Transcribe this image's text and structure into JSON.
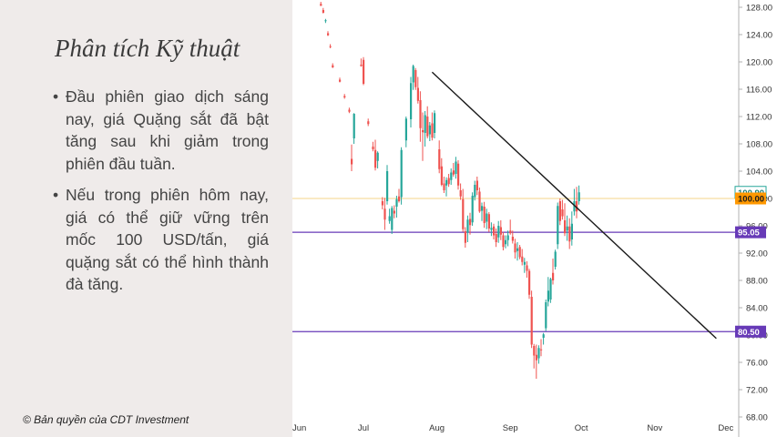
{
  "title": "Phân tích Kỹ thuật",
  "bullets": [
    "Đầu phiên giao dịch sáng nay, giá Quặng sắt đã bật tăng sau khi giảm trong phiên đầu tuần.",
    "Nếu trong phiên hôm nay, giá có thể giữ vững trên mốc 100 USD/tấn, giá quặng sắt có thể hình thành đà tăng."
  ],
  "copyright": "© Bản quyền của CDT Investment",
  "colors": {
    "up": "#26a69a",
    "down": "#ef5350",
    "resistance": "#f5d58a",
    "support": "#673ab7",
    "trendline": "#1a1a1a",
    "price_tag": "#ff9800",
    "last_tag_border": "#26a69a"
  },
  "chart_data": {
    "type": "candlestick",
    "ylim": [
      68,
      129
    ],
    "yticks": [
      "128.00",
      "124.00",
      "120.00",
      "116.00",
      "112.00",
      "108.00",
      "104.00",
      "100.00",
      "96.00",
      "92.00",
      "88.00",
      "84.00",
      "80.00",
      "76.00",
      "72.00",
      "68.00"
    ],
    "xticks": [
      {
        "label": "Jun",
        "day": 0
      },
      {
        "label": "Jul",
        "day": 30
      },
      {
        "label": "Aug",
        "day": 61
      },
      {
        "label": "Sep",
        "day": 92
      },
      {
        "label": "Oct",
        "day": 122
      },
      {
        "label": "Nov",
        "day": 153
      },
      {
        "label": "Dec",
        "day": 183
      }
    ],
    "horizontal_lines": [
      {
        "value": 100.9,
        "label": "100.90",
        "style": "last"
      },
      {
        "value": 100.0,
        "label": "100.00",
        "style": "resistance"
      },
      {
        "value": 95.05,
        "label": "95.05",
        "style": "support"
      },
      {
        "value": 80.5,
        "label": "80.50",
        "style": "support"
      }
    ],
    "trendline": {
      "from": {
        "day": 59,
        "price": 118.5
      },
      "to": {
        "day": 179,
        "price": 79.5
      }
    },
    "candles": [
      [
        12,
        128.5,
        128.8,
        128.2,
        128.2
      ],
      [
        13,
        127.6,
        127.9,
        127.1,
        127.2
      ],
      [
        14,
        126.0,
        126.3,
        125.7,
        126.1
      ],
      [
        15,
        124.2,
        124.5,
        123.8,
        123.9
      ],
      [
        16,
        122.3,
        122.6,
        122.0,
        122.2
      ],
      [
        17,
        119.5,
        119.8,
        119.1,
        119.2
      ],
      [
        20,
        117.4,
        117.7,
        117.0,
        117.1
      ],
      [
        22,
        115.0,
        115.3,
        114.6,
        114.8
      ],
      [
        24,
        113.0,
        113.3,
        112.5,
        112.7
      ],
      [
        25,
        105.8,
        107.9,
        104.0,
        105.0
      ],
      [
        26,
        108.8,
        112.5,
        108.0,
        112.4
      ],
      [
        29,
        119.6,
        120.5,
        119.3,
        119.4
      ],
      [
        30,
        120.3,
        120.7,
        116.6,
        116.8
      ],
      [
        32,
        111.3,
        111.7,
        110.6,
        110.9
      ],
      [
        34,
        107.6,
        108.3,
        106.9,
        107.2
      ],
      [
        35,
        107.1,
        108.6,
        104.1,
        104.5
      ],
      [
        36,
        105.5,
        106.9,
        104.4,
        106.7
      ],
      [
        38,
        99.6,
        100.2,
        98.4,
        99.0
      ],
      [
        39,
        98.5,
        100.1,
        95.4,
        96.9
      ],
      [
        40,
        99.6,
        104.9,
        99.1,
        104.0
      ],
      [
        41,
        96.7,
        98.5,
        96.3,
        97.4
      ],
      [
        42,
        95.4,
        98.9,
        94.8,
        98.6
      ],
      [
        43,
        98.2,
        99.0,
        97.1,
        97.8
      ],
      [
        44,
        98.8,
        100.4,
        97.2,
        99.9
      ],
      [
        45,
        100.3,
        101.4,
        99.4,
        99.6
      ],
      [
        46,
        100.2,
        107.5,
        99.1,
        107.1
      ],
      [
        48,
        108.5,
        112.0,
        107.5,
        111.7
      ],
      [
        50,
        111.6,
        117.8,
        110.4,
        116.9
      ],
      [
        51,
        117.0,
        119.6,
        115.9,
        119.4
      ],
      [
        52,
        118.8,
        119.1,
        115.9,
        116.3
      ],
      [
        53,
        116.2,
        117.8,
        113.9,
        114.3
      ],
      [
        54,
        114.4,
        115.7,
        108.3,
        110.3
      ],
      [
        55,
        110.0,
        112.6,
        105.5,
        109.7
      ],
      [
        56,
        109.6,
        112.8,
        107.6,
        112.2
      ],
      [
        57,
        112.0,
        113.5,
        108.8,
        109.1
      ],
      [
        58,
        109.4,
        111.2,
        108.4,
        110.7
      ],
      [
        59,
        111.0,
        112.6,
        108.5,
        108.9
      ],
      [
        60,
        109.6,
        112.9,
        108.8,
        112.5
      ],
      [
        62,
        107.2,
        108.5,
        103.7,
        104.3
      ],
      [
        63,
        104.7,
        105.9,
        101.8,
        102.0
      ],
      [
        64,
        102.2,
        103.2,
        100.8,
        101.2
      ],
      [
        65,
        101.9,
        103.1,
        100.3,
        102.7
      ],
      [
        66,
        103.0,
        103.6,
        101.7,
        102.1
      ],
      [
        67,
        102.7,
        104.4,
        102.0,
        103.8
      ],
      [
        68,
        104.1,
        105.2,
        103.2,
        103.5
      ],
      [
        69,
        103.6,
        106.1,
        102.9,
        105.4
      ],
      [
        70,
        105.1,
        105.6,
        101.3,
        101.9
      ],
      [
        71,
        101.2,
        102.2,
        99.8,
        100.3
      ],
      [
        72,
        99.9,
        101.4,
        95.1,
        95.5
      ],
      [
        73,
        95.2,
        95.8,
        92.8,
        93.5
      ],
      [
        74,
        95.0,
        97.5,
        93.6,
        96.9
      ],
      [
        75,
        97.0,
        97.9,
        94.7,
        96.1
      ],
      [
        76,
        96.5,
        100.9,
        96.0,
        100.4
      ],
      [
        77,
        100.2,
        102.6,
        99.7,
        102.0
      ],
      [
        78,
        102.6,
        103.2,
        100.5,
        101.2
      ],
      [
        79,
        101.0,
        101.6,
        97.9,
        98.1
      ],
      [
        80,
        98.2,
        99.4,
        96.7,
        98.9
      ],
      [
        81,
        98.8,
        99.5,
        95.7,
        96.4
      ],
      [
        82,
        96.6,
        98.5,
        95.5,
        97.8
      ],
      [
        83,
        97.7,
        98.0,
        95.1,
        95.6
      ],
      [
        84,
        95.4,
        96.5,
        94.5,
        95.7
      ],
      [
        85,
        95.9,
        96.3,
        94.0,
        94.6
      ],
      [
        86,
        94.8,
        95.6,
        92.9,
        93.6
      ],
      [
        87,
        94.3,
        96.7,
        93.5,
        96.0
      ],
      [
        88,
        95.8,
        96.8,
        93.9,
        94.7
      ],
      [
        89,
        94.6,
        95.1,
        92.4,
        92.9
      ],
      [
        90,
        93.3,
        94.6,
        92.7,
        93.9
      ],
      [
        91,
        93.9,
        95.3,
        93.0,
        94.6
      ],
      [
        92,
        95.3,
        96.9,
        94.7,
        94.9
      ],
      [
        93,
        94.4,
        95.3,
        93.4,
        93.8
      ],
      [
        94,
        93.4,
        94.1,
        91.2,
        92.1
      ],
      [
        95,
        92.3,
        93.6,
        90.9,
        92.7
      ],
      [
        96,
        92.9,
        93.2,
        91.1,
        91.4
      ],
      [
        97,
        91.5,
        92.6,
        90.2,
        90.7
      ],
      [
        98,
        90.3,
        91.3,
        89.1,
        90.7
      ],
      [
        99,
        90.2,
        90.8,
        88.4,
        89.4
      ],
      [
        100,
        89.4,
        89.7,
        85.3,
        85.9
      ],
      [
        101,
        85.6,
        86.5,
        78.1,
        78.6
      ],
      [
        102,
        78.4,
        78.7,
        75.1,
        77.0
      ],
      [
        103,
        77.1,
        78.6,
        73.6,
        76.3
      ],
      [
        104,
        76.6,
        78.5,
        75.8,
        78.1
      ],
      [
        105,
        77.9,
        79.4,
        76.9,
        77.8
      ],
      [
        106,
        79.6,
        80.3,
        78.6,
        80.1
      ],
      [
        107,
        81.0,
        85.2,
        80.6,
        84.8
      ],
      [
        108,
        84.9,
        88.5,
        84.2,
        86.5
      ],
      [
        109,
        85.2,
        88.4,
        84.7,
        88.2
      ],
      [
        110,
        89.1,
        91.2,
        87.4,
        88.0
      ],
      [
        111,
        90.0,
        92.5,
        89.6,
        92.2
      ],
      [
        112,
        93.3,
        99.4,
        92.6,
        98.9
      ],
      [
        113,
        99.6,
        100.0,
        96.1,
        96.7
      ],
      [
        114,
        98.4,
        99.8,
        96.9,
        97.4
      ],
      [
        115,
        96.8,
        99.3,
        94.5,
        94.9
      ],
      [
        116,
        95.3,
        97.5,
        93.8,
        95.9
      ],
      [
        117,
        95.9,
        97.1,
        92.6,
        93.7
      ],
      [
        118,
        94.0,
        98.1,
        93.1,
        96.3
      ],
      [
        119,
        98.1,
        101.4,
        97.5,
        99.6
      ],
      [
        120,
        99.6,
        101.7,
        97.1,
        98.1
      ],
      [
        121,
        99.6,
        101.9,
        99.1,
        100.9
      ]
    ]
  }
}
